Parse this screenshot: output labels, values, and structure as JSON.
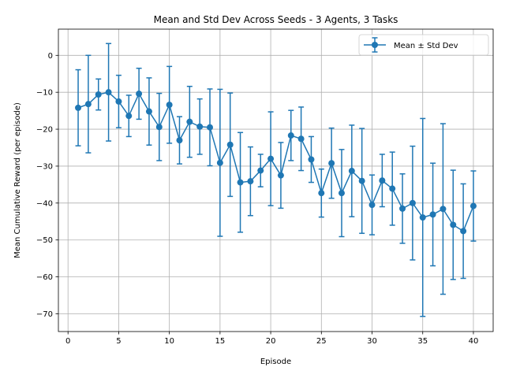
{
  "chart_data": {
    "type": "line",
    "title": "Mean and Std Dev Across Seeds - 3 Agents, 3 Tasks",
    "xlabel": "Episode",
    "ylabel": "Mean Cumulative Reward (per episode)",
    "xlim": [
      -0.95,
      41.95
    ],
    "ylim": [
      -74.8,
      7.1
    ],
    "xticks": [
      0,
      5,
      10,
      15,
      20,
      25,
      30,
      35,
      40
    ],
    "yticks": [
      0,
      -10,
      -20,
      -30,
      -40,
      -50,
      -60,
      -70
    ],
    "grid": true,
    "legend_position": "top-right",
    "color": "#1f77b4",
    "series": [
      {
        "name": "Mean ± Std Dev",
        "x": [
          1,
          2,
          3,
          4,
          5,
          6,
          7,
          8,
          9,
          10,
          11,
          12,
          13,
          14,
          15,
          16,
          17,
          18,
          19,
          20,
          21,
          22,
          23,
          24,
          25,
          26,
          27,
          28,
          29,
          30,
          31,
          32,
          33,
          34,
          35,
          36,
          37,
          38,
          39,
          40
        ],
        "y": [
          -14.2,
          -13.2,
          -10.6,
          -10.0,
          -12.5,
          -16.4,
          -10.4,
          -15.2,
          -19.4,
          -13.4,
          -23.0,
          -18.0,
          -19.3,
          -19.5,
          -29.1,
          -24.2,
          -34.4,
          -34.1,
          -31.2,
          -28.0,
          -32.5,
          -21.7,
          -22.6,
          -28.2,
          -37.3,
          -29.2,
          -37.3,
          -31.3,
          -34.0,
          -40.5,
          -33.9,
          -36.1,
          -41.5,
          -40.0,
          -43.9,
          -43.1,
          -41.6,
          -45.9,
          -47.6,
          -40.8
        ],
        "err": [
          10.3,
          13.2,
          4.2,
          13.2,
          7.1,
          5.6,
          6.9,
          9.1,
          9.1,
          10.4,
          6.4,
          9.6,
          7.5,
          10.4,
          19.9,
          14.0,
          13.5,
          9.3,
          4.4,
          12.7,
          8.9,
          6.8,
          8.6,
          6.2,
          6.5,
          9.5,
          11.8,
          12.4,
          14.2,
          8.1,
          7.1,
          9.9,
          9.4,
          15.4,
          26.8,
          13.9,
          23.1,
          14.8,
          12.8,
          9.5
        ]
      }
    ]
  }
}
